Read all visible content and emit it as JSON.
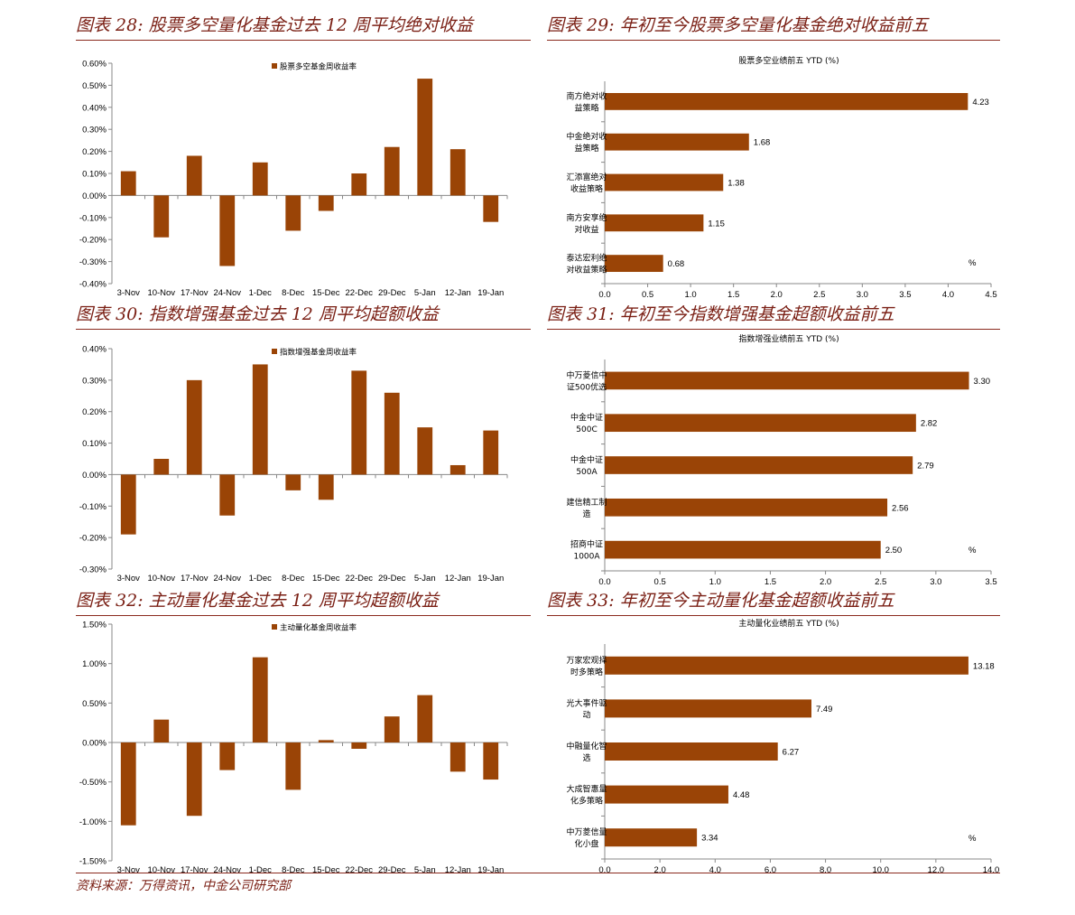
{
  "colors": {
    "bar": "#9a4406",
    "title": "#7a1f14",
    "rule": "#8b2a1e",
    "axis": "#888888"
  },
  "footer": {
    "source": "资料来源：万得资讯，中金公司研究部"
  },
  "chart_data": [
    {
      "id": "c28",
      "type": "bar",
      "orientation": "vertical",
      "title": "图表 28: 股票多空量化基金过去 12 周平均绝对收益",
      "legend": "股票多空基金周收益率",
      "categories": [
        "3-Nov",
        "10-Nov",
        "17-Nov",
        "24-Nov",
        "1-Dec",
        "8-Dec",
        "15-Dec",
        "22-Dec",
        "29-Dec",
        "5-Jan",
        "12-Jan",
        "19-Jan"
      ],
      "values": [
        0.11,
        -0.19,
        0.18,
        -0.32,
        0.15,
        -0.16,
        -0.07,
        0.1,
        0.22,
        0.53,
        0.21,
        -0.12
      ],
      "ylim": [
        -0.4,
        0.6
      ],
      "ystep": 0.1,
      "ydecimals": 2,
      "yunit": "%"
    },
    {
      "id": "c29",
      "type": "bar",
      "orientation": "horizontal",
      "title": "图表 29: 年初至今股票多空量化基金绝对收益前五",
      "chart_title": "股票多空业绩前五 YTD (%)",
      "categories": [
        [
          "南方绝对收",
          "益策略"
        ],
        [
          "中金绝对收",
          "益策略"
        ],
        [
          "汇添富绝对",
          "收益策略"
        ],
        [
          "南方安享绝",
          "对收益"
        ],
        [
          "泰达宏利绝",
          "对收益策略"
        ]
      ],
      "values": [
        4.23,
        1.68,
        1.38,
        1.15,
        0.68
      ],
      "value_labels": [
        "4.23",
        "1.68",
        "1.38",
        "1.15",
        "0.68"
      ],
      "xlim": [
        0,
        4.5
      ],
      "xstep": 0.5,
      "xdecimals": 1,
      "unit_label": "%"
    },
    {
      "id": "c30",
      "type": "bar",
      "orientation": "vertical",
      "title": "图表 30: 指数增强基金过去 12 周平均超额收益",
      "legend": "指数增强基金周收益率",
      "categories": [
        "3-Nov",
        "10-Nov",
        "17-Nov",
        "24-Nov",
        "1-Dec",
        "8-Dec",
        "15-Dec",
        "22-Dec",
        "29-Dec",
        "5-Jan",
        "12-Jan",
        "19-Jan"
      ],
      "values": [
        -0.19,
        0.05,
        0.3,
        -0.13,
        0.35,
        -0.05,
        -0.08,
        0.33,
        0.26,
        0.15,
        0.03,
        0.14
      ],
      "ylim": [
        -0.3,
        0.4
      ],
      "ystep": 0.1,
      "ydecimals": 2,
      "yunit": "%"
    },
    {
      "id": "c31",
      "type": "bar",
      "orientation": "horizontal",
      "title": "图表 31: 年初至今指数增强基金超额收益前五",
      "chart_title": "指数增强业绩前五 YTD (%)",
      "categories": [
        [
          "中万菱信中",
          "证500优选"
        ],
        [
          "中金中证",
          "500C"
        ],
        [
          "中金中证",
          "500A"
        ],
        [
          "建信精工制",
          "造"
        ],
        [
          "招商中证",
          "1000A"
        ]
      ],
      "values": [
        3.3,
        2.82,
        2.79,
        2.56,
        2.5
      ],
      "value_labels": [
        "3.30",
        "2.82",
        "2.79",
        "2.56",
        "2.50"
      ],
      "xlim": [
        0,
        3.5
      ],
      "xstep": 0.5,
      "xdecimals": 1,
      "unit_label": "%"
    },
    {
      "id": "c32",
      "type": "bar",
      "orientation": "vertical",
      "title": "图表 32: 主动量化基金过去 12 周平均超额收益",
      "legend": "主动量化基金周收益率",
      "categories": [
        "3-Nov",
        "10-Nov",
        "17-Nov",
        "24-Nov",
        "1-Dec",
        "8-Dec",
        "15-Dec",
        "22-Dec",
        "29-Dec",
        "5-Jan",
        "12-Jan",
        "19-Jan"
      ],
      "values": [
        -1.05,
        0.29,
        -0.93,
        -0.35,
        1.08,
        -0.6,
        0.03,
        -0.08,
        0.33,
        0.6,
        -0.37,
        -0.47
      ],
      "ylim": [
        -1.5,
        1.5
      ],
      "ystep": 0.5,
      "ydecimals": 2,
      "yunit": "%"
    },
    {
      "id": "c33",
      "type": "bar",
      "orientation": "horizontal",
      "title": "图表 33: 年初至今主动量化基金超额收益前五",
      "chart_title": "主动量化业绩前五 YTD (%)",
      "categories": [
        [
          "万家宏观择",
          "时多策略"
        ],
        [
          "光大事件驱",
          "动"
        ],
        [
          "中融量化智",
          "选"
        ],
        [
          "大成智惠量",
          "化多策略"
        ],
        [
          "中万菱信量",
          "化小盘"
        ]
      ],
      "values": [
        13.18,
        7.49,
        6.27,
        4.48,
        3.34
      ],
      "value_labels": [
        "13.18",
        "7.49",
        "6.27",
        "4.48",
        "3.34"
      ],
      "xlim": [
        0,
        14
      ],
      "xstep": 2,
      "xdecimals": 1,
      "unit_label": "%"
    }
  ]
}
